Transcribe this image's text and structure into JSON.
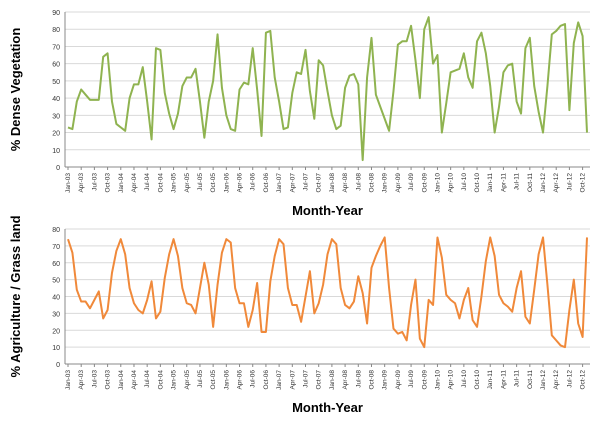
{
  "chart_data": [
    {
      "type": "line",
      "xlabel": "Month-Year",
      "ylabel": "% Dense Vegetation",
      "ylim": [
        0,
        90
      ],
      "yticks": [
        0,
        10,
        20,
        30,
        40,
        50,
        60,
        70,
        80,
        90
      ],
      "grid": true,
      "legend": "none",
      "color": "#8fb350",
      "x_tick_labels": [
        "Jan-03",
        "Apr-03",
        "Jul-03",
        "Oct-03",
        "Jan-04",
        "Apr-04",
        "Jul-04",
        "Oct-04",
        "Jan-05",
        "Apr-05",
        "Jul-05",
        "Oct-05",
        "Jan-06",
        "Apr-06",
        "Jul-06",
        "Oct-06",
        "Jan-07",
        "Apr-07",
        "Jul-07",
        "Oct-07",
        "Jan-08",
        "Apr-08",
        "Jul-08",
        "Oct-08",
        "Jan-09",
        "Apr-09",
        "Jul-09",
        "Oct-09",
        "Jan-10",
        "Apr-10",
        "Jul-10",
        "Oct-10",
        "Jan-11",
        "Apr-11",
        "Jul-11",
        "Oct-11",
        "Jan-12",
        "Apr-12",
        "Jul-12",
        "Oct-12"
      ],
      "series": [
        {
          "values": [
            23,
            22,
            38,
            45,
            42,
            39,
            39,
            39,
            64,
            66,
            38,
            25,
            23,
            21,
            40,
            48,
            48,
            58,
            38,
            16,
            69,
            68,
            43,
            31,
            22,
            31,
            47,
            52,
            52,
            57,
            38,
            17,
            38,
            50,
            77,
            46,
            30,
            22,
            21,
            45,
            49,
            48,
            69,
            45,
            18,
            78,
            79,
            52,
            38,
            22,
            23,
            43,
            55,
            54,
            68,
            44,
            28,
            62,
            59,
            44,
            30,
            22,
            24,
            46,
            53,
            54,
            48,
            4,
            52,
            75,
            42,
            35,
            28,
            21,
            44,
            71,
            73,
            73,
            82,
            62,
            40,
            80,
            87,
            60,
            65,
            20,
            37,
            55,
            56,
            57,
            66,
            52,
            46,
            73,
            78,
            66,
            47,
            20,
            35,
            55,
            59,
            60,
            38,
            31,
            69,
            75,
            47,
            32,
            20,
            47,
            77,
            79,
            82,
            83,
            33,
            72,
            84,
            76,
            20
          ],
          "x_start": "Jan-03",
          "interval": "month"
        }
      ]
    },
    {
      "type": "line",
      "xlabel": "Month-Year",
      "ylabel": "% Agriculture / Grass land",
      "ylim": [
        0,
        80
      ],
      "yticks": [
        0,
        10,
        20,
        30,
        40,
        50,
        60,
        70,
        80
      ],
      "grid": true,
      "legend": "none",
      "color": "#f0893a",
      "x_tick_labels": [
        "Jan-03",
        "Apr-03",
        "Jul-03",
        "Oct-03",
        "Jan-04",
        "Apr-04",
        "Jul-04",
        "Oct-04",
        "Jan-05",
        "Apr-05",
        "Jul-05",
        "Oct-05",
        "Jan-06",
        "Apr-06",
        "Jul-06",
        "Oct-06",
        "Jan-07",
        "Apr-07",
        "Jul-07",
        "Oct-07",
        "Jan-08",
        "Apr-08",
        "Jul-08",
        "Oct-08",
        "Jan-09",
        "Apr-09",
        "Jul-09",
        "Oct-09",
        "Jan-10",
        "Apr-10",
        "Jul-10",
        "Oct-10",
        "Jan-11",
        "Apr-11",
        "Jul-11",
        "Oct-11",
        "Jan-12",
        "Apr-12",
        "Jul-12",
        "Oct-12"
      ],
      "series": [
        {
          "values": [
            74,
            66,
            44,
            37,
            37,
            33,
            38,
            43,
            27,
            32,
            54,
            67,
            74,
            65,
            45,
            36,
            32,
            30,
            38,
            49,
            27,
            31,
            51,
            65,
            74,
            64,
            45,
            36,
            35,
            30,
            45,
            60,
            47,
            22,
            47,
            66,
            74,
            72,
            45,
            36,
            36,
            22,
            32,
            48,
            19,
            19,
            49,
            64,
            74,
            71,
            45,
            35,
            35,
            25,
            40,
            55,
            30,
            36,
            47,
            65,
            74,
            71,
            45,
            35,
            33,
            37,
            52,
            42,
            24,
            57,
            64,
            70,
            75,
            45,
            21,
            18,
            19,
            14,
            35,
            50,
            15,
            10,
            38,
            35,
            75,
            63,
            41,
            38,
            36,
            27,
            38,
            45,
            26,
            22,
            40,
            61,
            75,
            64,
            41,
            36,
            34,
            31,
            45,
            55,
            28,
            24,
            44,
            65,
            75,
            47,
            17,
            14,
            11,
            10,
            32,
            50,
            24,
            16,
            75
          ],
          "x_start": "Jan-03",
          "interval": "month"
        }
      ]
    }
  ]
}
